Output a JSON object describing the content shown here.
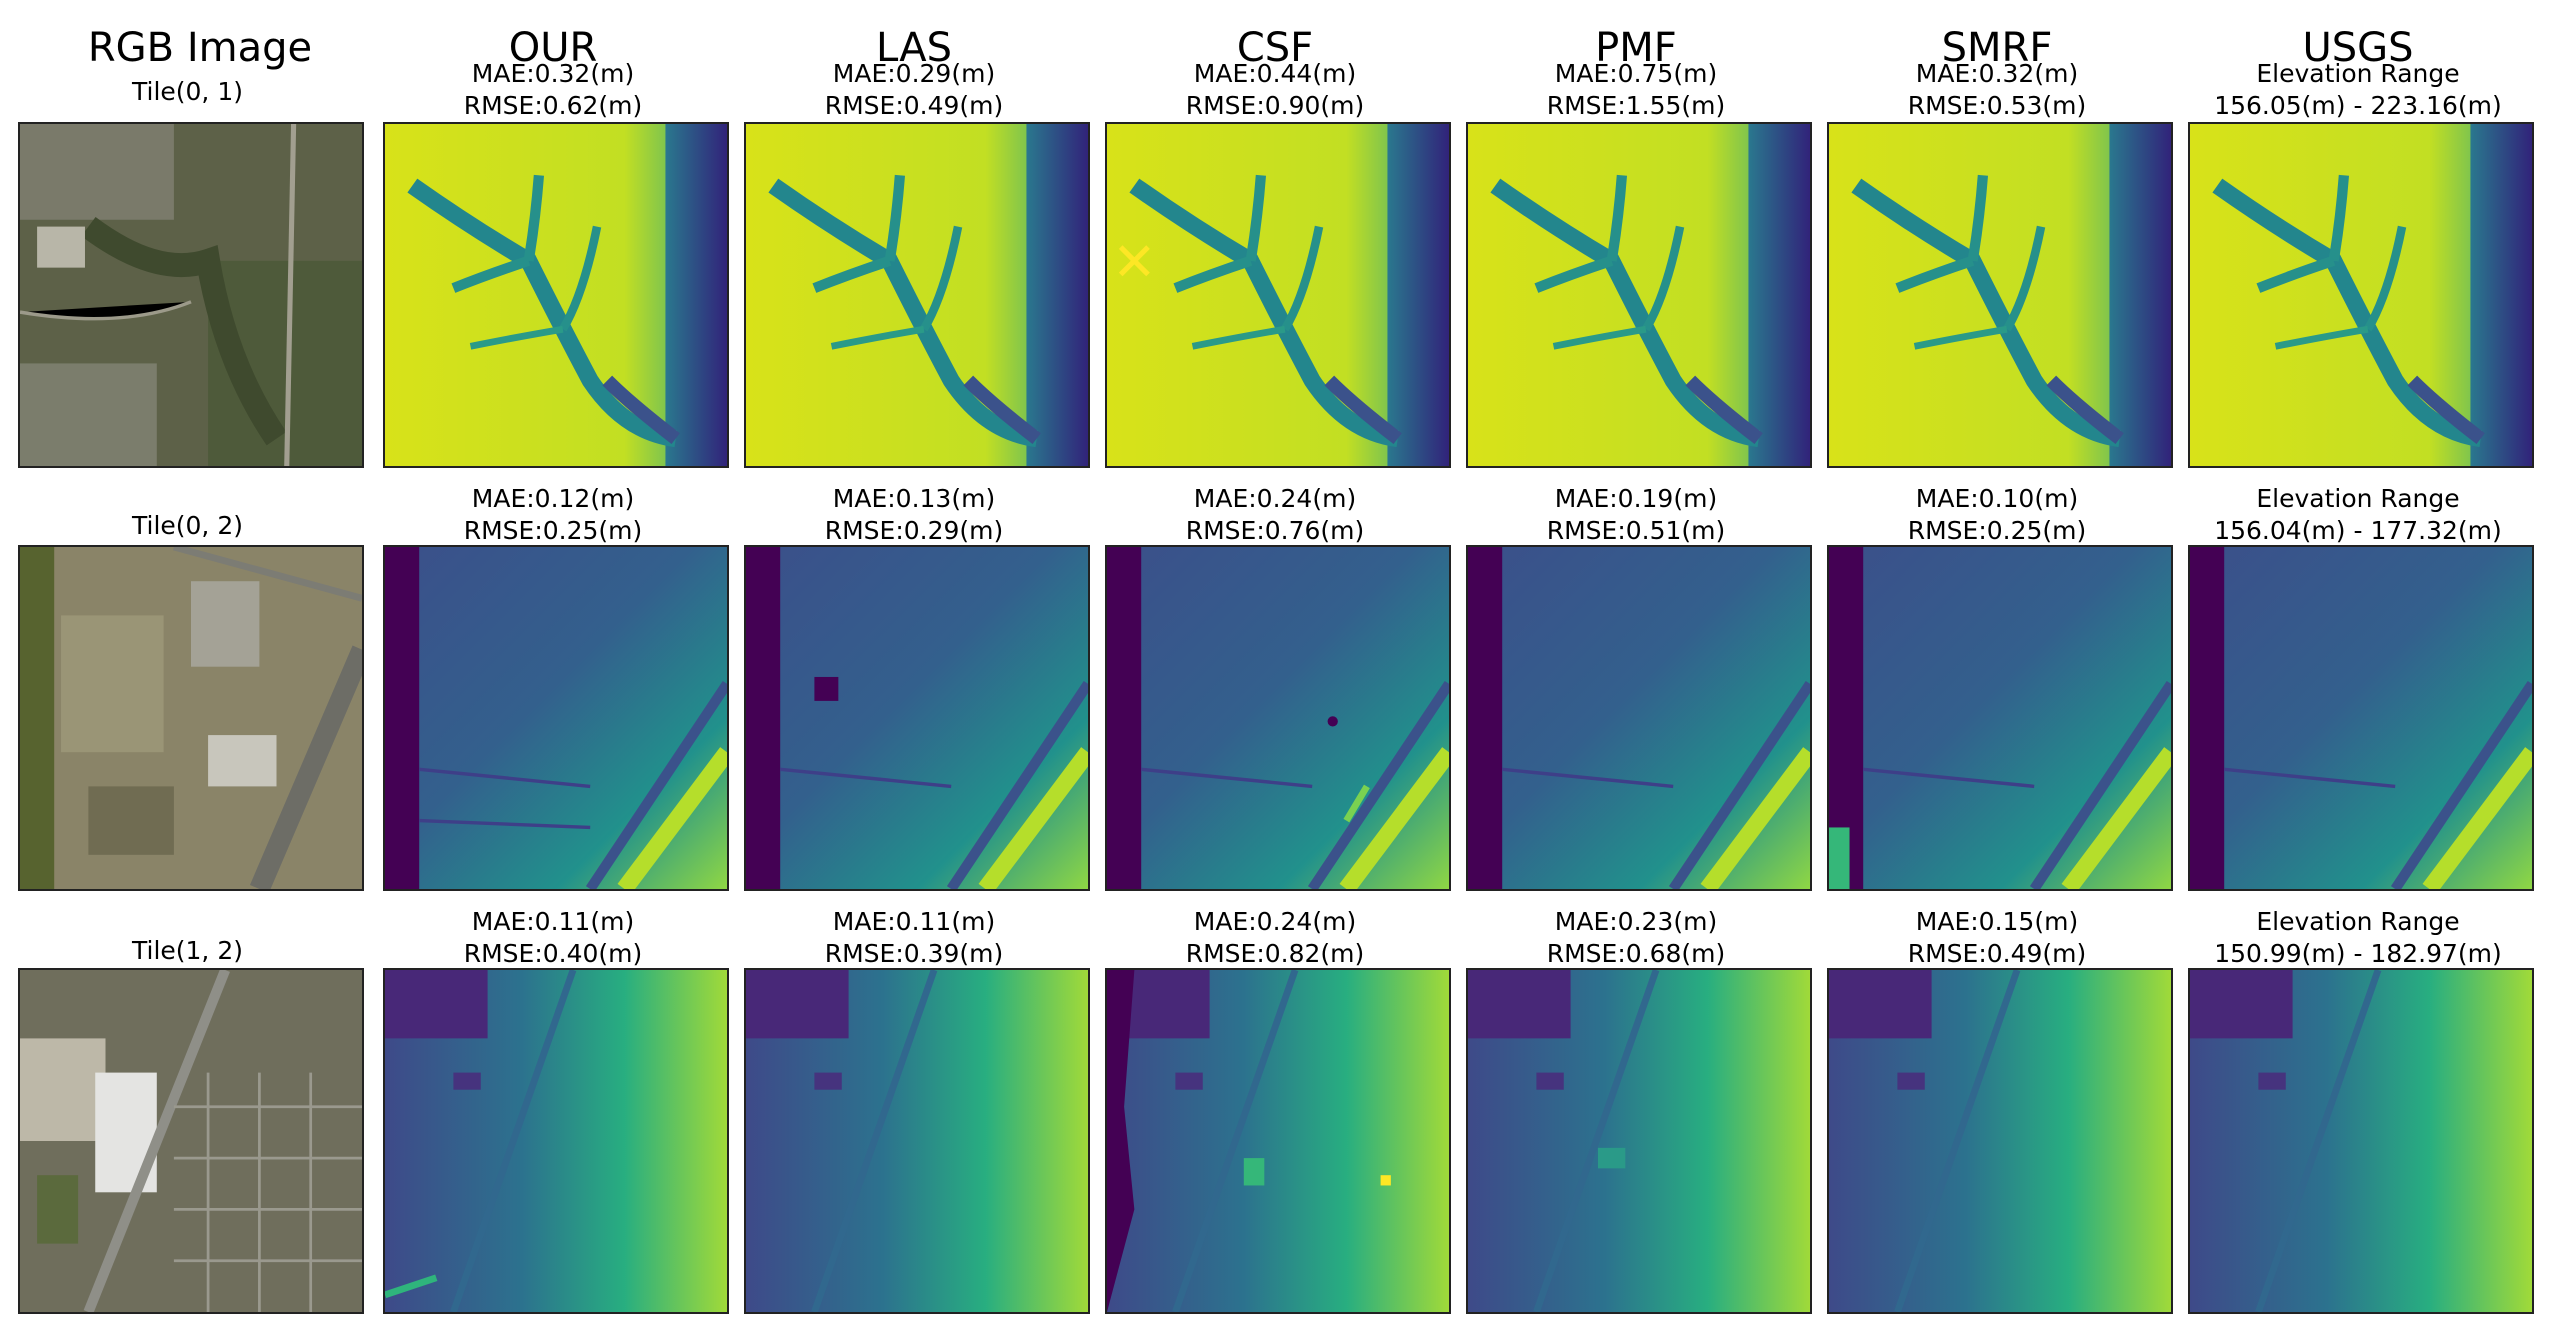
{
  "columns": [
    {
      "header": "RGB Image"
    },
    {
      "header": "OUR"
    },
    {
      "header": "LAS"
    },
    {
      "header": "CSF"
    },
    {
      "header": "PMF"
    },
    {
      "header": "SMRF"
    },
    {
      "header": "USGS"
    }
  ],
  "rows": [
    {
      "tile": "Tile(0, 1)",
      "metrics": [
        {
          "line1": "MAE:0.32(m)",
          "line2": "RMSE:0.62(m)"
        },
        {
          "line1": "MAE:0.29(m)",
          "line2": "RMSE:0.49(m)"
        },
        {
          "line1": "MAE:0.44(m)",
          "line2": "RMSE:0.90(m)"
        },
        {
          "line1": "MAE:0.75(m)",
          "line2": "RMSE:1.55(m)"
        },
        {
          "line1": "MAE:0.32(m)",
          "line2": "RMSE:0.53(m)"
        },
        {
          "line1": "Elevation Range",
          "line2": "156.05(m) - 223.16(m)"
        }
      ]
    },
    {
      "tile": "Tile(0, 2)",
      "metrics": [
        {
          "line1": "MAE:0.12(m)",
          "line2": "RMSE:0.25(m)"
        },
        {
          "line1": "MAE:0.13(m)",
          "line2": "RMSE:0.29(m)"
        },
        {
          "line1": "MAE:0.24(m)",
          "line2": "RMSE:0.76(m)"
        },
        {
          "line1": "MAE:0.19(m)",
          "line2": "RMSE:0.51(m)"
        },
        {
          "line1": "MAE:0.10(m)",
          "line2": "RMSE:0.25(m)"
        },
        {
          "line1": "Elevation Range",
          "line2": "156.04(m) - 177.32(m)"
        }
      ]
    },
    {
      "tile": "Tile(1, 2)",
      "metrics": [
        {
          "line1": "MAE:0.11(m)",
          "line2": "RMSE:0.40(m)"
        },
        {
          "line1": "MAE:0.11(m)",
          "line2": "RMSE:0.39(m)"
        },
        {
          "line1": "MAE:0.24(m)",
          "line2": "RMSE:0.82(m)"
        },
        {
          "line1": "MAE:0.23(m)",
          "line2": "RMSE:0.68(m)"
        },
        {
          "line1": "MAE:0.15(m)",
          "line2": "RMSE:0.49(m)"
        },
        {
          "line1": "Elevation Range",
          "line2": "150.99(m) - 182.97(m)"
        }
      ]
    }
  ],
  "colors": {
    "viridis_low": "#440154",
    "viridis_midlow": "#3b528b",
    "viridis_mid": "#21918c",
    "viridis_midhigh": "#5ec962",
    "viridis_high": "#fde725",
    "aerial_base": "#6b6a55"
  }
}
